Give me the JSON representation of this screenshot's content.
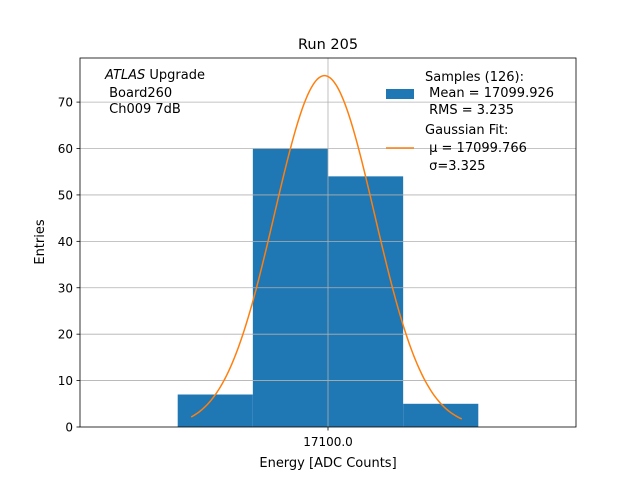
{
  "chart_data": {
    "type": "bar",
    "title": "Run 205",
    "xlabel": "Energy [ADC Counts]",
    "ylabel": "Entries",
    "xlim": [
      17083.5,
      17116.5
    ],
    "ylim": [
      0,
      79.5
    ],
    "x_ticks": [
      17100.0
    ],
    "x_tick_labels": [
      "17100.0"
    ],
    "y_ticks": [
      0,
      10,
      20,
      30,
      40,
      50,
      60,
      70
    ],
    "grid": true,
    "bin_edges": [
      17090,
      17095,
      17100,
      17105,
      17110
    ],
    "values": [
      7,
      60,
      54,
      5
    ],
    "bar_color": "#1f77b4",
    "fit": {
      "type": "gaussian",
      "amplitude": 75.7,
      "mu": 17099.766,
      "sigma": 3.325,
      "x_range": [
        17090.9,
        17108.9
      ],
      "color": "#ff7f0e"
    },
    "annotation": {
      "atlas": "ATLAS",
      "line1_rest": " Upgrade",
      "line2": " Board260",
      "line3": " Ch009 7dB"
    },
    "legend": {
      "placement": "upper-right",
      "entries": [
        {
          "lines": [
            "Samples (126):",
            " Mean = 17099.926",
            " RMS = 3.235"
          ]
        },
        {
          "lines": [
            "Gaussian Fit:",
            " μ = 17099.766",
            " σ=3.325"
          ]
        }
      ]
    }
  }
}
